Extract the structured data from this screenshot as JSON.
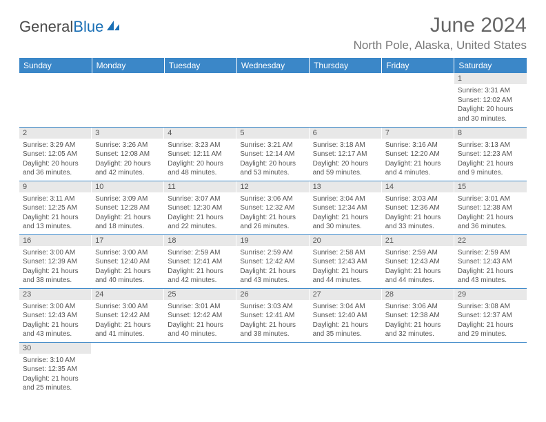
{
  "logo": {
    "text1": "General",
    "text2": "Blue"
  },
  "title": "June 2024",
  "location": "North Pole, Alaska, United States",
  "header_bg": "#3b87c8",
  "daynum_bg": "#e8e8e8",
  "columns": [
    "Sunday",
    "Monday",
    "Tuesday",
    "Wednesday",
    "Thursday",
    "Friday",
    "Saturday"
  ],
  "weeks": [
    [
      null,
      null,
      null,
      null,
      null,
      null,
      {
        "n": "1",
        "sr": "3:31 AM",
        "ss": "12:02 AM",
        "dl": "20 hours and 30 minutes."
      }
    ],
    [
      {
        "n": "2",
        "sr": "3:29 AM",
        "ss": "12:05 AM",
        "dl": "20 hours and 36 minutes."
      },
      {
        "n": "3",
        "sr": "3:26 AM",
        "ss": "12:08 AM",
        "dl": "20 hours and 42 minutes."
      },
      {
        "n": "4",
        "sr": "3:23 AM",
        "ss": "12:11 AM",
        "dl": "20 hours and 48 minutes."
      },
      {
        "n": "5",
        "sr": "3:21 AM",
        "ss": "12:14 AM",
        "dl": "20 hours and 53 minutes."
      },
      {
        "n": "6",
        "sr": "3:18 AM",
        "ss": "12:17 AM",
        "dl": "20 hours and 59 minutes."
      },
      {
        "n": "7",
        "sr": "3:16 AM",
        "ss": "12:20 AM",
        "dl": "21 hours and 4 minutes."
      },
      {
        "n": "8",
        "sr": "3:13 AM",
        "ss": "12:23 AM",
        "dl": "21 hours and 9 minutes."
      }
    ],
    [
      {
        "n": "9",
        "sr": "3:11 AM",
        "ss": "12:25 AM",
        "dl": "21 hours and 13 minutes."
      },
      {
        "n": "10",
        "sr": "3:09 AM",
        "ss": "12:28 AM",
        "dl": "21 hours and 18 minutes."
      },
      {
        "n": "11",
        "sr": "3:07 AM",
        "ss": "12:30 AM",
        "dl": "21 hours and 22 minutes."
      },
      {
        "n": "12",
        "sr": "3:06 AM",
        "ss": "12:32 AM",
        "dl": "21 hours and 26 minutes."
      },
      {
        "n": "13",
        "sr": "3:04 AM",
        "ss": "12:34 AM",
        "dl": "21 hours and 30 minutes."
      },
      {
        "n": "14",
        "sr": "3:03 AM",
        "ss": "12:36 AM",
        "dl": "21 hours and 33 minutes."
      },
      {
        "n": "15",
        "sr": "3:01 AM",
        "ss": "12:38 AM",
        "dl": "21 hours and 36 minutes."
      }
    ],
    [
      {
        "n": "16",
        "sr": "3:00 AM",
        "ss": "12:39 AM",
        "dl": "21 hours and 38 minutes."
      },
      {
        "n": "17",
        "sr": "3:00 AM",
        "ss": "12:40 AM",
        "dl": "21 hours and 40 minutes."
      },
      {
        "n": "18",
        "sr": "2:59 AM",
        "ss": "12:41 AM",
        "dl": "21 hours and 42 minutes."
      },
      {
        "n": "19",
        "sr": "2:59 AM",
        "ss": "12:42 AM",
        "dl": "21 hours and 43 minutes."
      },
      {
        "n": "20",
        "sr": "2:58 AM",
        "ss": "12:43 AM",
        "dl": "21 hours and 44 minutes."
      },
      {
        "n": "21",
        "sr": "2:59 AM",
        "ss": "12:43 AM",
        "dl": "21 hours and 44 minutes."
      },
      {
        "n": "22",
        "sr": "2:59 AM",
        "ss": "12:43 AM",
        "dl": "21 hours and 43 minutes."
      }
    ],
    [
      {
        "n": "23",
        "sr": "3:00 AM",
        "ss": "12:43 AM",
        "dl": "21 hours and 43 minutes."
      },
      {
        "n": "24",
        "sr": "3:00 AM",
        "ss": "12:42 AM",
        "dl": "21 hours and 41 minutes."
      },
      {
        "n": "25",
        "sr": "3:01 AM",
        "ss": "12:42 AM",
        "dl": "21 hours and 40 minutes."
      },
      {
        "n": "26",
        "sr": "3:03 AM",
        "ss": "12:41 AM",
        "dl": "21 hours and 38 minutes."
      },
      {
        "n": "27",
        "sr": "3:04 AM",
        "ss": "12:40 AM",
        "dl": "21 hours and 35 minutes."
      },
      {
        "n": "28",
        "sr": "3:06 AM",
        "ss": "12:38 AM",
        "dl": "21 hours and 32 minutes."
      },
      {
        "n": "29",
        "sr": "3:08 AM",
        "ss": "12:37 AM",
        "dl": "21 hours and 29 minutes."
      }
    ],
    [
      {
        "n": "30",
        "sr": "3:10 AM",
        "ss": "12:35 AM",
        "dl": "21 hours and 25 minutes."
      },
      null,
      null,
      null,
      null,
      null,
      null
    ]
  ],
  "labels": {
    "sunrise": "Sunrise: ",
    "sunset": "Sunset: ",
    "daylight": "Daylight: "
  }
}
